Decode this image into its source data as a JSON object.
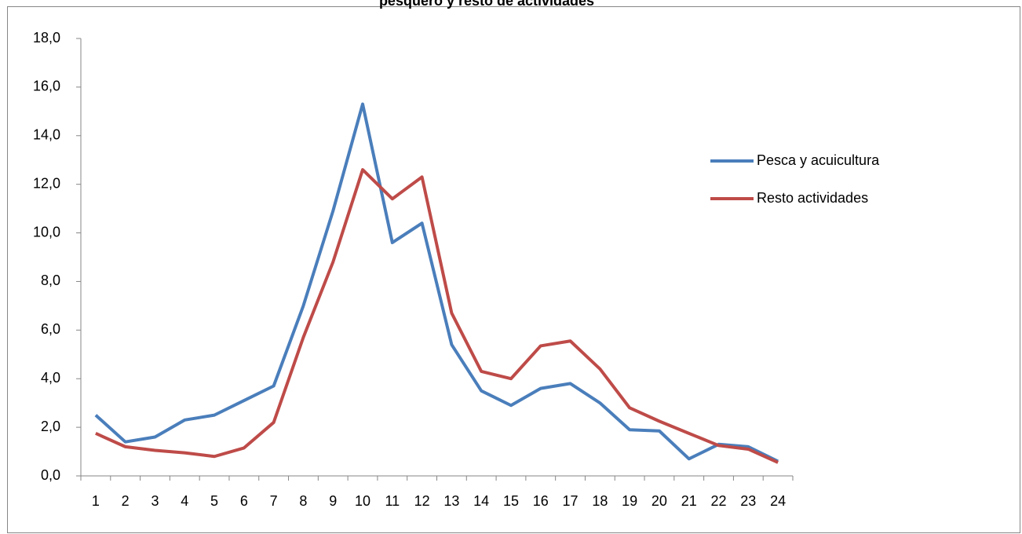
{
  "chart_data": {
    "type": "line",
    "title": "pesquero y resto de actividades",
    "categories": [
      "1",
      "2",
      "3",
      "4",
      "5",
      "6",
      "7",
      "8",
      "9",
      "10",
      "11",
      "12",
      "13",
      "14",
      "15",
      "16",
      "17",
      "18",
      "19",
      "20",
      "21",
      "22",
      "23",
      "24"
    ],
    "series": [
      {
        "name": "Pesca y acuicultura",
        "color": "#4a7ebb",
        "values": [
          2.5,
          1.4,
          1.6,
          2.3,
          2.5,
          3.1,
          3.7,
          7.0,
          10.9,
          15.3,
          9.6,
          10.4,
          5.4,
          3.5,
          2.9,
          3.6,
          3.8,
          3.0,
          1.9,
          1.85,
          0.7,
          1.3,
          1.2,
          0.6
        ]
      },
      {
        "name": "Resto actividades",
        "color": "#be4b48",
        "values": [
          1.75,
          1.2,
          1.05,
          0.95,
          0.8,
          1.15,
          2.2,
          5.7,
          8.8,
          12.6,
          11.4,
          12.3,
          6.7,
          4.3,
          4.0,
          5.35,
          5.55,
          4.4,
          2.8,
          2.25,
          1.75,
          1.25,
          1.1,
          0.55
        ]
      }
    ],
    "ylim": [
      0,
      18
    ],
    "yticks": [
      {
        "value": 0,
        "label": "0,0"
      },
      {
        "value": 2,
        "label": "2,0"
      },
      {
        "value": 4,
        "label": "4,0"
      },
      {
        "value": 6,
        "label": "6,0"
      },
      {
        "value": 8,
        "label": "8,0"
      },
      {
        "value": 10,
        "label": "10,0"
      },
      {
        "value": 12,
        "label": "12,0"
      },
      {
        "value": 14,
        "label": "14,0"
      },
      {
        "value": 16,
        "label": "16,0"
      },
      {
        "value": 18,
        "label": "18,0"
      }
    ],
    "legend": "right"
  }
}
